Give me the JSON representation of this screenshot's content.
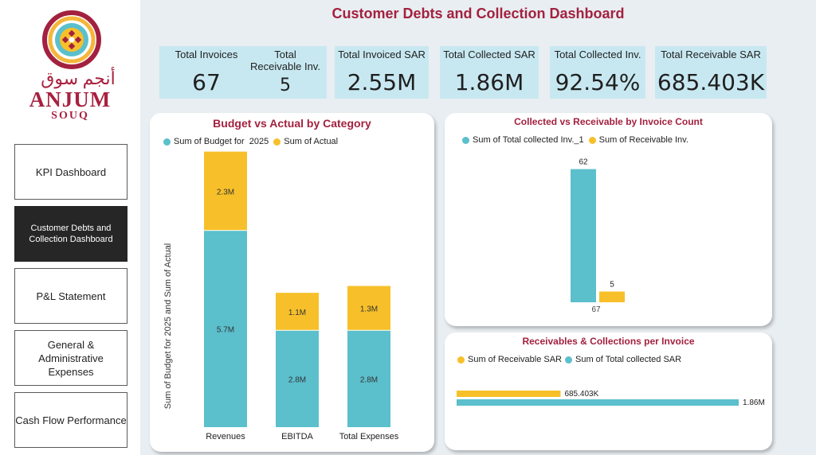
{
  "colors": {
    "teal": "#5bbfcc",
    "yellow": "#f7c02a",
    "brand": "#a3213f"
  },
  "logo": {
    "arabic": "أنجم سوق",
    "name": "ANJUM",
    "sub": "SOUQ"
  },
  "nav": [
    {
      "label": "KPI Dashboard"
    },
    {
      "label": "Customer Debts and Collection Dashboard"
    },
    {
      "label": "P&L Statement"
    },
    {
      "label": "General & Administrative Expenses"
    },
    {
      "label": "Cash Flow Performance"
    }
  ],
  "title": "Customer Debts and Collection Dashboard",
  "kpis": [
    {
      "label": "Total Invoices",
      "value": "67"
    },
    {
      "label": "Total Receivable Inv.",
      "value": "5"
    },
    {
      "label": "Total Invoiced SAR",
      "value": "2.55M"
    },
    {
      "label": "Total Collected SAR",
      "value": "1.86M"
    },
    {
      "label": "Total Collected Inv.",
      "value": "92.54%"
    },
    {
      "label": "Total Receivable SAR",
      "value": "685.403K"
    }
  ],
  "chart_data": [
    {
      "type": "bar",
      "stacked": true,
      "title": "Budget vs Actual by Category",
      "ylabel": "Sum of Budget for 2025 and Sum of Actual",
      "categories": [
        "Revenues",
        "EBITDA",
        "Total Expenses"
      ],
      "series": [
        {
          "name": "Sum of Budget for  2025",
          "values": [
            5.7,
            2.8,
            2.8
          ],
          "labels": [
            "5.7M",
            "2.8M",
            "2.8M"
          ]
        },
        {
          "name": "Sum of Actual",
          "values": [
            2.3,
            1.1,
            1.3
          ],
          "labels": [
            "2.3M",
            "1.1M",
            "1.3M"
          ]
        }
      ],
      "legend": "top-left"
    },
    {
      "type": "bar",
      "title": "Collected vs Receivable by Invoice Count",
      "series": [
        {
          "name": "Sum of Total collected Inv._1",
          "values": [
            62
          ]
        },
        {
          "name": "Sum of Receivable Inv.",
          "values": [
            5
          ]
        }
      ],
      "category_label": "67",
      "legend": "top-left"
    },
    {
      "type": "bar",
      "orientation": "horizontal",
      "title": "Receivables & Collections per Invoice",
      "series": [
        {
          "name": "Sum of Receivable SAR",
          "values": [
            685403
          ],
          "label": "685.403K"
        },
        {
          "name": "Sum of Total collected SAR",
          "values": [
            1860000
          ],
          "label": "1.86M"
        }
      ],
      "legend": "top-left"
    }
  ]
}
